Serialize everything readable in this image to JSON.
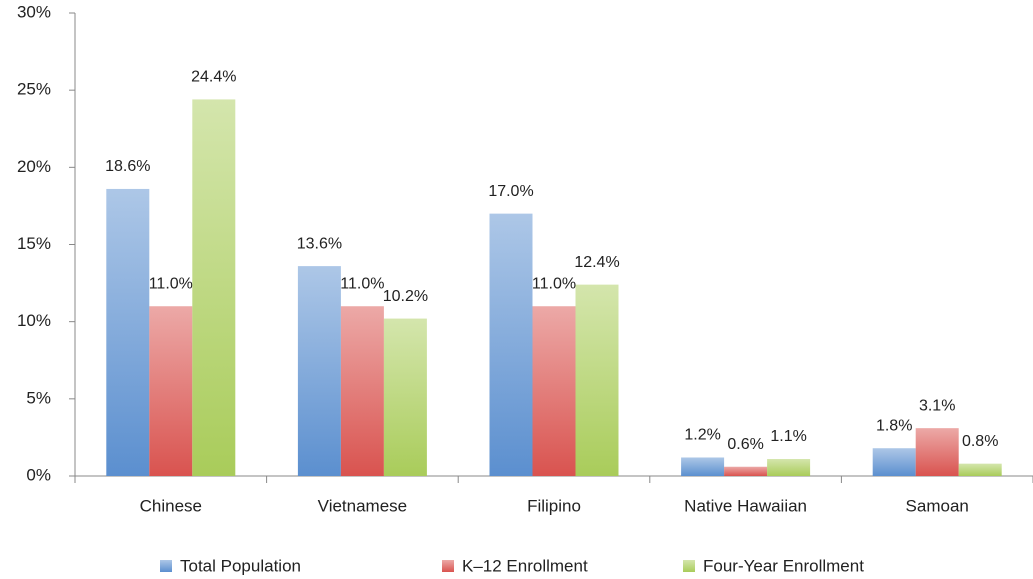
{
  "chart_data": {
    "type": "bar",
    "categories": [
      "Chinese",
      "Vietnamese",
      "Filipino",
      "Native Hawaiian",
      "Samoan"
    ],
    "series": [
      {
        "name": "Total Population",
        "color": "#5b8fcf",
        "values": [
          18.6,
          13.6,
          17.0,
          1.2,
          1.8
        ],
        "value_labels": [
          "18.6%",
          "13.6%",
          "17.0%",
          "1.2%",
          "1.8%"
        ]
      },
      {
        "name": "K–12 Enrollment",
        "color": "#d9534f",
        "values": [
          11.0,
          11.0,
          11.0,
          0.6,
          3.1
        ],
        "value_labels": [
          "11.0%",
          "11.0%",
          "11.0%",
          "0.6%",
          "3.1%"
        ]
      },
      {
        "name": "Four-Year Enrollment",
        "color": "#a9cc5a",
        "values": [
          24.4,
          10.2,
          12.4,
          1.1,
          0.8
        ],
        "value_labels": [
          "24.4%",
          "10.2%",
          "12.4%",
          "1.1%",
          "0.8%"
        ]
      }
    ],
    "ylim": [
      0,
      30
    ],
    "yticks": [
      {
        "value": 0,
        "label": "0%"
      },
      {
        "value": 5,
        "label": "5%"
      },
      {
        "value": 10,
        "label": "10%"
      },
      {
        "value": 15,
        "label": "15%"
      },
      {
        "value": 20,
        "label": "20%"
      },
      {
        "value": 25,
        "label": "25%"
      },
      {
        "value": 30,
        "label": "30%"
      }
    ],
    "legend": "bottom"
  }
}
